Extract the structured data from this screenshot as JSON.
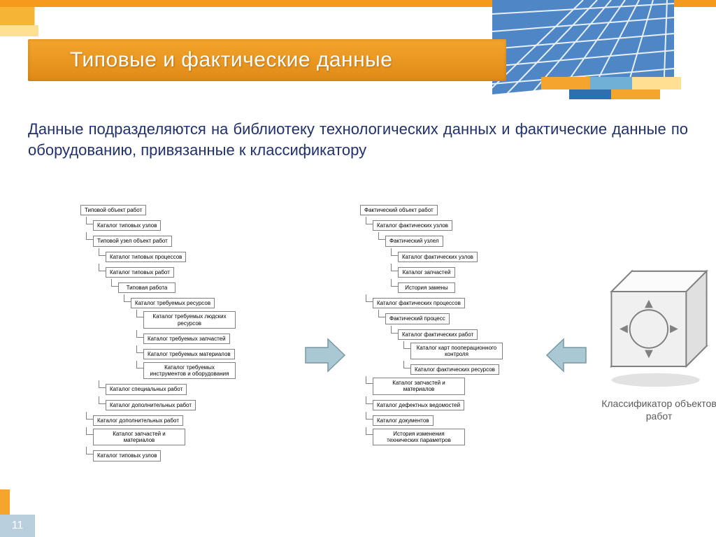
{
  "colors": {
    "header_orange": "#f3a52d",
    "header_orange_dark": "#e08a17",
    "top_stripe": "#f59a1c",
    "deco_light": "#ffdf92",
    "deco_blue": "#70b0d7",
    "title_text": "#ffffff",
    "body_text": "#21316b",
    "box_border": "#808080",
    "box_text": "#000000",
    "arrow_fill": "#a9c8d4",
    "arrow_stroke": "#7a98a4",
    "cube_fill": "#f0f0f0",
    "cube_stroke": "#808080",
    "page_bg": "#b9cfde",
    "caption": "#5a5a5a",
    "building_blue": "#4f87c6",
    "building_white": "#e6eff8"
  },
  "typography": {
    "title_fontsize": 30,
    "body_fontsize": 22,
    "box_fontsize": 8,
    "caption_fontsize": 14,
    "page_fontsize": 16
  },
  "title": "Типовые и фактические данные",
  "body": "Данные подразделяются на библиотеку технологических данных и фактические данные по оборудованию, привязанные к классификатору",
  "tree_left": [
    {
      "indent": 0,
      "label": "Типовой объект работ",
      "root": 1
    },
    {
      "indent": 18,
      "label": "Каталог типовых узлов"
    },
    {
      "indent": 18,
      "label": "Типовой узел объект работ"
    },
    {
      "indent": 36,
      "label": "Каталог типовых процессов"
    },
    {
      "indent": 36,
      "label": "Каталог типовых работ"
    },
    {
      "indent": 54,
      "label": "Типовая работа"
    },
    {
      "indent": 72,
      "label": "Каталог требуемых ресурсов"
    },
    {
      "indent": 90,
      "label": "Каталог требуемых людских ресурсов"
    },
    {
      "indent": 90,
      "label": "Каталог требуемых запчастей"
    },
    {
      "indent": 90,
      "label": "Каталог требуемых материалов"
    },
    {
      "indent": 90,
      "label": "Каталог требуемых инструментов и оборудования"
    },
    {
      "indent": 36,
      "label": "Каталог специальных работ"
    },
    {
      "indent": 36,
      "label": "Каталог дополнительных работ"
    },
    {
      "indent": 18,
      "label": "Каталог дополнительных работ"
    },
    {
      "indent": 18,
      "label": "Каталог запчастей и материалов"
    },
    {
      "indent": 18,
      "label": "Каталог типовых узлов"
    }
  ],
  "tree_right": [
    {
      "indent": 0,
      "label": "Фактический объект работ",
      "root": 1
    },
    {
      "indent": 18,
      "label": "Каталог фактических узлов"
    },
    {
      "indent": 36,
      "label": "Фактический узлел"
    },
    {
      "indent": 54,
      "label": "Каталог фактических узлов"
    },
    {
      "indent": 54,
      "label": "Каталог запчастей"
    },
    {
      "indent": 54,
      "label": "История замены"
    },
    {
      "indent": 18,
      "label": "Каталог фактических процессов"
    },
    {
      "indent": 36,
      "label": "Фактический процесс"
    },
    {
      "indent": 54,
      "label": "Каталог фактических работ"
    },
    {
      "indent": 72,
      "label": "Каталог карт пооперационного контроля"
    },
    {
      "indent": 72,
      "label": "Каталог фактических ресурсов"
    },
    {
      "indent": 18,
      "label": "Каталог запчастей и материалов"
    },
    {
      "indent": 18,
      "label": "Каталог дефектных ведомостей"
    },
    {
      "indent": 18,
      "label": "Каталог документов"
    },
    {
      "indent": 18,
      "label": "История изменения технических параметров"
    }
  ],
  "cube_caption": "Классификатор объектов работ",
  "page_number": "11"
}
